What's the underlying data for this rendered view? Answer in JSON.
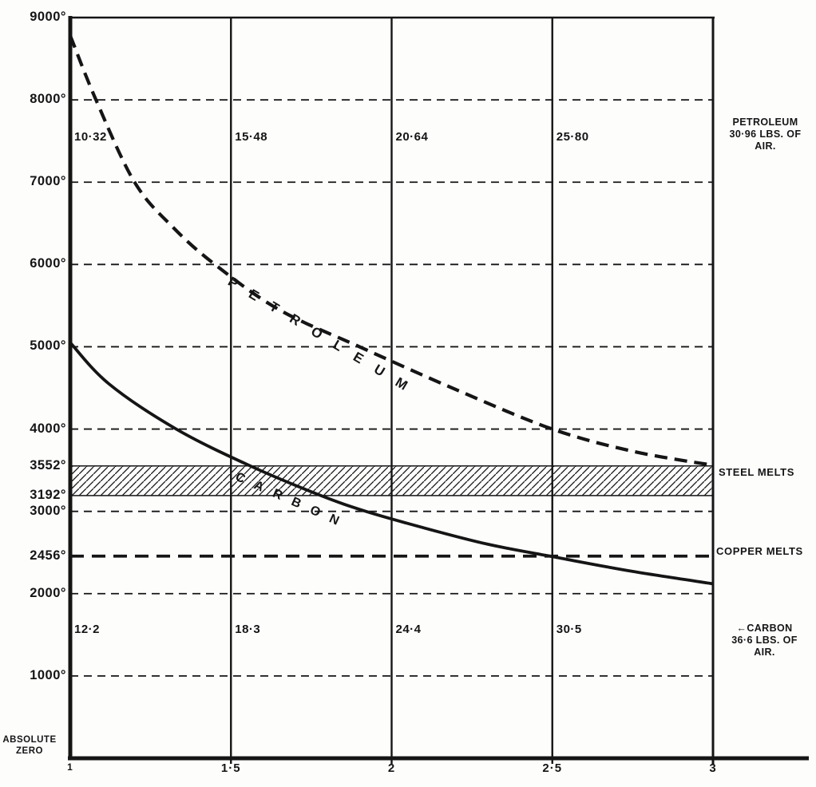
{
  "chart_data": {
    "type": "line",
    "x_axis": {
      "range": [
        1,
        3
      ],
      "ticks": [
        {
          "v": 1,
          "label": "1"
        },
        {
          "v": 1.5,
          "label": "1·5"
        },
        {
          "v": 2,
          "label": "2"
        },
        {
          "v": 2.5,
          "label": "2·5"
        },
        {
          "v": 3,
          "label": "3"
        }
      ],
      "gridline_values": [
        1.5,
        2,
        2.5
      ]
    },
    "y_axis": {
      "range": [
        0,
        9000
      ],
      "unit": "degrees",
      "origin_label": [
        "ABSOLUTE",
        "ZERO"
      ],
      "ticks": [
        {
          "v": 9000,
          "label": "9000°",
          "grid": false
        },
        {
          "v": 8000,
          "label": "8000°",
          "grid": true
        },
        {
          "v": 7000,
          "label": "7000°",
          "grid": true
        },
        {
          "v": 6000,
          "label": "6000°",
          "grid": true
        },
        {
          "v": 5000,
          "label": "5000°",
          "grid": true
        },
        {
          "v": 4000,
          "label": "4000°",
          "grid": true
        },
        {
          "v": 3552,
          "label": "3552°",
          "grid": false
        },
        {
          "v": 3192,
          "label": "3192°",
          "grid": false
        },
        {
          "v": 3000,
          "label": "3000°",
          "grid": true
        },
        {
          "v": 2456,
          "label": "2456°",
          "grid": false
        },
        {
          "v": 2000,
          "label": "2000°",
          "grid": true
        },
        {
          "v": 1000,
          "label": "1000°",
          "grid": true
        }
      ]
    },
    "series": [
      {
        "name": "petroleum",
        "curve_label": "PETROLEUM",
        "style": "dashed",
        "points": [
          [
            1,
            8780
          ],
          [
            1.08,
            8000
          ],
          [
            1.2,
            7000
          ],
          [
            1.32,
            6450
          ],
          [
            1.45,
            6000
          ],
          [
            1.65,
            5450
          ],
          [
            1.9,
            5000
          ],
          [
            2.2,
            4480
          ],
          [
            2.5,
            4000
          ],
          [
            2.75,
            3730
          ],
          [
            3,
            3560
          ]
        ],
        "air_lbs_row_temp": 7550,
        "air_lbs_values": [
          {
            "x": 1,
            "label": "10·32"
          },
          {
            "x": 1.5,
            "label": "15·48"
          },
          {
            "x": 2,
            "label": "20·64"
          },
          {
            "x": 2.5,
            "label": "25·80"
          }
        ],
        "side_label_lines": [
          "PETROLEUM",
          "30·96 LBS. OF",
          "AIR."
        ]
      },
      {
        "name": "carbon",
        "curve_label": "CARBON",
        "style": "solid",
        "points": [
          [
            1,
            5050
          ],
          [
            1.12,
            4550
          ],
          [
            1.33,
            4000
          ],
          [
            1.56,
            3552
          ],
          [
            1.78,
            3192
          ],
          [
            1.92,
            3000
          ],
          [
            2.1,
            2800
          ],
          [
            2.3,
            2600
          ],
          [
            2.5,
            2450
          ],
          [
            2.75,
            2270
          ],
          [
            3,
            2120
          ]
        ],
        "air_lbs_row_temp": 1560,
        "air_lbs_values": [
          {
            "x": 1,
            "label": "12·2"
          },
          {
            "x": 1.5,
            "label": "18·3"
          },
          {
            "x": 2,
            "label": "24·4"
          },
          {
            "x": 2.5,
            "label": "30·5"
          }
        ],
        "side_label_lines": [
          "CARBON",
          "36·6 LBS. OF",
          "AIR."
        ]
      }
    ],
    "reference_lines": [
      {
        "value": 2456,
        "label": "COPPER MELTS",
        "style": "heavy-dashed"
      }
    ],
    "reference_bands": [
      {
        "from": 3192,
        "to": 3552,
        "label": "STEEL MELTS",
        "fill": "hatch"
      }
    ],
    "ink_color": "#151515",
    "paper_color": "#fdfdfc"
  },
  "icons": {
    "carbon_pointer_icon": "←"
  }
}
